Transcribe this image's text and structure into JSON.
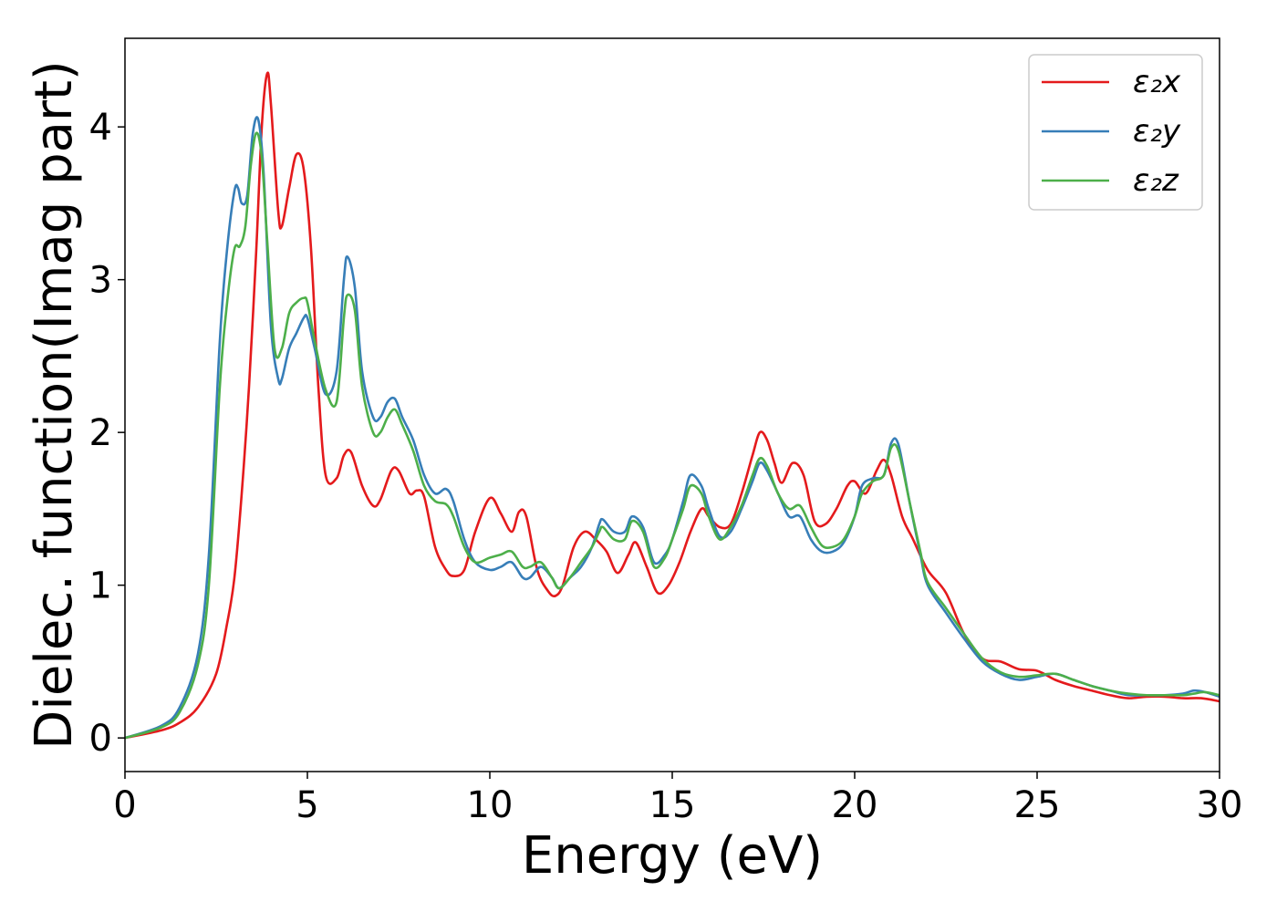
{
  "chart_data": {
    "type": "line",
    "title": "",
    "xlabel": "Energy (eV)",
    "ylabel": "Dielec. function(Imag part)",
    "xlim": [
      0,
      30
    ],
    "ylim": [
      -0.22,
      4.58
    ],
    "xticks": [
      0,
      5,
      10,
      15,
      20,
      25,
      30
    ],
    "xtick_labels": [
      "0",
      "5",
      "10",
      "15",
      "20",
      "25",
      "30"
    ],
    "yticks": [
      0,
      1,
      2,
      3,
      4
    ],
    "ytick_labels": [
      "0",
      "1",
      "2",
      "3",
      "4"
    ],
    "grid": false,
    "legend_position": "top-right",
    "series": [
      {
        "name": "ε₂x",
        "color": "#e41a1c",
        "x": [
          0,
          1,
          1.5,
          2,
          2.5,
          2.8,
          3.0,
          3.2,
          3.4,
          3.6,
          3.75,
          3.9,
          4.0,
          4.2,
          4.3,
          4.5,
          4.7,
          4.9,
          5.1,
          5.3,
          5.5,
          5.8,
          6.0,
          6.2,
          6.5,
          6.8,
          7.0,
          7.3,
          7.5,
          7.8,
          8.0,
          8.2,
          8.5,
          8.8,
          9.0,
          9.3,
          9.6,
          10.0,
          10.3,
          10.6,
          10.8,
          11.0,
          11.3,
          11.6,
          11.8,
          12.0,
          12.3,
          12.6,
          12.9,
          13.2,
          13.5,
          13.8,
          14.0,
          14.3,
          14.6,
          14.9,
          15.2,
          15.5,
          15.8,
          16.0,
          16.3,
          16.6,
          16.9,
          17.2,
          17.4,
          17.6,
          17.8,
          18.0,
          18.3,
          18.6,
          18.9,
          19.2,
          19.5,
          19.8,
          20.0,
          20.3,
          20.6,
          20.8,
          21.0,
          21.3,
          21.6,
          22.0,
          22.5,
          23.0,
          23.5,
          24.0,
          24.5,
          25.0,
          25.5,
          26.0,
          26.5,
          27.0,
          27.5,
          28.0,
          28.5,
          29.0,
          29.5,
          30.0
        ],
        "values": [
          0,
          0.05,
          0.1,
          0.2,
          0.42,
          0.75,
          1.05,
          1.6,
          2.3,
          3.2,
          4.0,
          4.35,
          4.15,
          3.45,
          3.35,
          3.6,
          3.82,
          3.72,
          3.2,
          2.3,
          1.72,
          1.7,
          1.85,
          1.87,
          1.65,
          1.52,
          1.56,
          1.75,
          1.75,
          1.6,
          1.62,
          1.58,
          1.25,
          1.1,
          1.06,
          1.1,
          1.35,
          1.57,
          1.47,
          1.35,
          1.48,
          1.45,
          1.1,
          0.96,
          0.93,
          1.0,
          1.25,
          1.35,
          1.3,
          1.22,
          1.08,
          1.2,
          1.28,
          1.12,
          0.95,
          1.0,
          1.15,
          1.35,
          1.5,
          1.45,
          1.38,
          1.4,
          1.6,
          1.85,
          2.0,
          1.95,
          1.8,
          1.67,
          1.8,
          1.72,
          1.42,
          1.4,
          1.5,
          1.65,
          1.68,
          1.6,
          1.75,
          1.82,
          1.72,
          1.45,
          1.3,
          1.1,
          0.95,
          0.68,
          0.52,
          0.5,
          0.45,
          0.44,
          0.38,
          0.34,
          0.31,
          0.28,
          0.26,
          0.27,
          0.27,
          0.26,
          0.26,
          0.24
        ]
      },
      {
        "name": "ε₂y",
        "color": "#377eb8",
        "x": [
          0,
          1,
          1.5,
          2,
          2.3,
          2.6,
          2.8,
          3.0,
          3.1,
          3.2,
          3.35,
          3.5,
          3.65,
          3.8,
          4.0,
          4.2,
          4.3,
          4.5,
          4.7,
          4.9,
          5.0,
          5.2,
          5.5,
          5.8,
          6.0,
          6.1,
          6.3,
          6.5,
          6.8,
          7.0,
          7.2,
          7.4,
          7.6,
          7.9,
          8.2,
          8.5,
          8.8,
          9.0,
          9.3,
          9.6,
          10.0,
          10.3,
          10.6,
          10.9,
          11.1,
          11.4,
          11.7,
          11.9,
          12.2,
          12.5,
          12.8,
          13.0,
          13.1,
          13.4,
          13.7,
          13.9,
          14.2,
          14.5,
          14.8,
          15.0,
          15.3,
          15.5,
          15.8,
          16.0,
          16.3,
          16.6,
          16.9,
          17.2,
          17.4,
          17.6,
          17.9,
          18.2,
          18.5,
          18.8,
          19.1,
          19.4,
          19.7,
          20.0,
          20.2,
          20.5,
          20.8,
          21.0,
          21.2,
          21.5,
          21.8,
          22.0,
          22.5,
          23.0,
          23.5,
          24.0,
          24.5,
          25.0,
          25.5,
          26.0,
          26.5,
          27.0,
          27.5,
          28.0,
          28.5,
          29.0,
          29.3,
          29.6,
          30.0
        ],
        "values": [
          0,
          0.08,
          0.2,
          0.55,
          1.2,
          2.6,
          3.2,
          3.58,
          3.6,
          3.5,
          3.55,
          3.95,
          4.05,
          3.7,
          2.7,
          2.35,
          2.35,
          2.55,
          2.65,
          2.75,
          2.75,
          2.55,
          2.25,
          2.4,
          3.0,
          3.15,
          2.95,
          2.4,
          2.1,
          2.1,
          2.2,
          2.22,
          2.1,
          1.95,
          1.72,
          1.6,
          1.63,
          1.55,
          1.3,
          1.15,
          1.1,
          1.12,
          1.15,
          1.05,
          1.05,
          1.12,
          1.05,
          0.98,
          1.05,
          1.12,
          1.25,
          1.4,
          1.43,
          1.35,
          1.35,
          1.45,
          1.38,
          1.15,
          1.2,
          1.3,
          1.55,
          1.72,
          1.65,
          1.5,
          1.32,
          1.35,
          1.5,
          1.68,
          1.8,
          1.75,
          1.6,
          1.45,
          1.45,
          1.3,
          1.22,
          1.22,
          1.28,
          1.45,
          1.65,
          1.7,
          1.72,
          1.93,
          1.92,
          1.55,
          1.2,
          1.0,
          0.82,
          0.65,
          0.5,
          0.42,
          0.38,
          0.4,
          0.42,
          0.38,
          0.34,
          0.31,
          0.28,
          0.28,
          0.28,
          0.29,
          0.31,
          0.3,
          0.27
        ]
      },
      {
        "name": "ε₂z",
        "color": "#4daf4a",
        "x": [
          0,
          1,
          1.5,
          2,
          2.3,
          2.6,
          2.8,
          3.0,
          3.15,
          3.3,
          3.45,
          3.6,
          3.75,
          3.9,
          4.1,
          4.3,
          4.5,
          4.7,
          4.9,
          5.0,
          5.2,
          5.5,
          5.8,
          6.0,
          6.1,
          6.3,
          6.5,
          6.8,
          7.0,
          7.2,
          7.4,
          7.6,
          7.9,
          8.2,
          8.5,
          8.8,
          9.0,
          9.3,
          9.6,
          10.0,
          10.3,
          10.6,
          10.9,
          11.1,
          11.4,
          11.7,
          11.9,
          12.2,
          12.5,
          12.8,
          13.0,
          13.1,
          13.4,
          13.7,
          13.9,
          14.2,
          14.5,
          14.8,
          15.0,
          15.3,
          15.5,
          15.8,
          16.0,
          16.3,
          16.6,
          16.9,
          17.2,
          17.4,
          17.6,
          17.9,
          18.2,
          18.5,
          18.8,
          19.1,
          19.4,
          19.7,
          20.0,
          20.2,
          20.5,
          20.8,
          21.0,
          21.2,
          21.5,
          21.8,
          22.0,
          22.5,
          23.0,
          23.5,
          24.0,
          24.5,
          25.0,
          25.5,
          26.0,
          26.5,
          27.0,
          27.5,
          28.0,
          28.5,
          29.0,
          29.3,
          29.6,
          30.0
        ],
        "values": [
          0,
          0.07,
          0.17,
          0.48,
          1.0,
          2.3,
          2.85,
          3.2,
          3.22,
          3.35,
          3.75,
          3.96,
          3.8,
          3.25,
          2.55,
          2.55,
          2.78,
          2.85,
          2.88,
          2.85,
          2.6,
          2.28,
          2.2,
          2.75,
          2.9,
          2.8,
          2.3,
          2.0,
          2.0,
          2.1,
          2.15,
          2.05,
          1.88,
          1.65,
          1.55,
          1.53,
          1.45,
          1.25,
          1.15,
          1.18,
          1.2,
          1.22,
          1.12,
          1.12,
          1.15,
          1.05,
          0.98,
          1.05,
          1.15,
          1.25,
          1.35,
          1.38,
          1.3,
          1.3,
          1.42,
          1.35,
          1.12,
          1.18,
          1.3,
          1.5,
          1.65,
          1.6,
          1.45,
          1.3,
          1.38,
          1.52,
          1.72,
          1.83,
          1.78,
          1.6,
          1.5,
          1.52,
          1.38,
          1.26,
          1.25,
          1.3,
          1.45,
          1.6,
          1.68,
          1.72,
          1.9,
          1.88,
          1.55,
          1.22,
          1.02,
          0.85,
          0.68,
          0.52,
          0.43,
          0.4,
          0.41,
          0.42,
          0.38,
          0.34,
          0.31,
          0.29,
          0.28,
          0.28,
          0.28,
          0.29,
          0.3,
          0.28
        ]
      }
    ]
  }
}
